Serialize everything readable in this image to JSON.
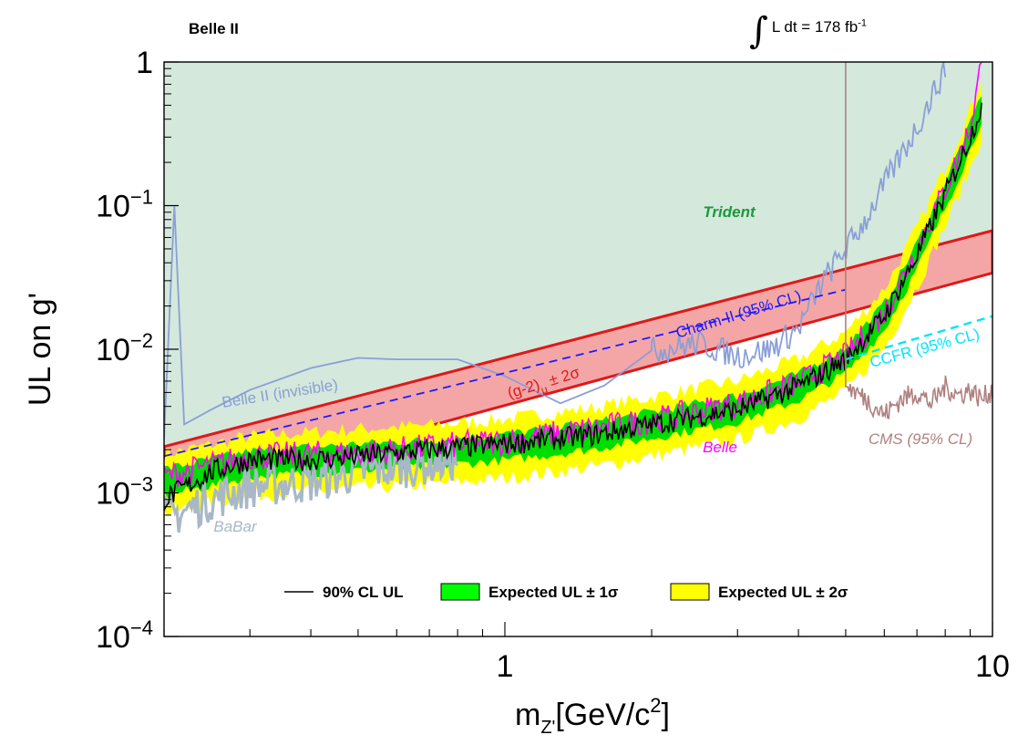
{
  "header": {
    "experiment": "Belle II",
    "lumi_integral_symbol": "∫",
    "lumi_text": "L dt = 178 fb",
    "lumi_exponent": "-1"
  },
  "chart_data": {
    "type": "line",
    "title": "",
    "xlabel_main": "m",
    "xlabel_sub": "Z'",
    "xlabel_rest": "[GeV/c",
    "xlabel_sup": "2",
    "xlabel_close": "]",
    "ylabel": "UL on g'",
    "x_scale": "log",
    "y_scale": "log",
    "xlim": [
      0.2,
      10
    ],
    "ylim": [
      0.0001,
      1
    ],
    "x_ticks": [
      {
        "value": 1,
        "label": "1"
      },
      {
        "value": 10,
        "label": "10"
      }
    ],
    "y_ticks": [
      {
        "value": 1,
        "base": "1",
        "exp": ""
      },
      {
        "value": 0.1,
        "base": "10",
        "exp": "−1"
      },
      {
        "value": 0.01,
        "base": "10",
        "exp": "−2"
      },
      {
        "value": 0.001,
        "base": "10",
        "exp": "−3"
      },
      {
        "value": 0.0001,
        "base": "10",
        "exp": "−4"
      }
    ],
    "colors": {
      "excluded_region": "#d4e8dc",
      "gminus2_fill": "#f4a6a6",
      "gminus2_edge": "#e01818",
      "band_2sigma": "#ffff00",
      "band_1sigma": "#00dd00",
      "observed": "#000000",
      "belle": "#ff00ff",
      "babar": "#a8b8c8",
      "belle2_invisible": "#8a9fd6",
      "charm2": "#1a1aff",
      "ccfr": "#00e5ff",
      "cms": "#b08080",
      "trident_label": "#1a9a3a"
    },
    "gminus2_band": {
      "label_base": "(g-2)",
      "label_sub": "μ",
      "label_rest": "± 2σ",
      "lower": [
        [
          0.2,
          0.00092
        ],
        [
          10,
          0.034
        ]
      ],
      "upper": [
        [
          0.2,
          0.0021
        ],
        [
          10,
          0.067
        ]
      ]
    },
    "expected_band": {
      "x": [
        0.2,
        0.25,
        0.3,
        0.4,
        0.5,
        0.7,
        1.0,
        1.5,
        2.0,
        3.0,
        4.0,
        5.0,
        6.0,
        7.0,
        8.0,
        9.0,
        9.5
      ],
      "median": [
        0.0012,
        0.0014,
        0.0016,
        0.0017,
        0.0018,
        0.0019,
        0.0021,
        0.0025,
        0.003,
        0.0039,
        0.0055,
        0.0085,
        0.017,
        0.045,
        0.12,
        0.3,
        0.5
      ]
    },
    "series": [
      {
        "name": "90% CL UL",
        "x": [
          0.2,
          0.25,
          0.3,
          0.4,
          0.5,
          0.7,
          1.0,
          1.5,
          2.0,
          3.0,
          4.0,
          5.0,
          6.0,
          7.0,
          8.0,
          9.0,
          9.5
        ],
        "values": [
          0.0009,
          0.0014,
          0.0017,
          0.0017,
          0.0018,
          0.002,
          0.0022,
          0.0025,
          0.003,
          0.0038,
          0.0055,
          0.0085,
          0.017,
          0.045,
          0.12,
          0.3,
          0.5
        ]
      },
      {
        "name": "Belle",
        "x": [
          0.2,
          0.3,
          0.5,
          1.0,
          2.0,
          3.0,
          4.0,
          5.0,
          6.0,
          7.0,
          8.0,
          9.0,
          9.5
        ],
        "values": [
          0.0013,
          0.0018,
          0.0019,
          0.0023,
          0.0032,
          0.0042,
          0.0058,
          0.009,
          0.018,
          0.05,
          0.13,
          0.35,
          1.0
        ]
      },
      {
        "name": "BaBar",
        "x": [
          0.2,
          0.25,
          0.3,
          0.4,
          0.5,
          0.7,
          0.8
        ],
        "values": [
          0.00065,
          0.0009,
          0.0011,
          0.0012,
          0.0014,
          0.0016,
          0.0017
        ]
      },
      {
        "name": "Belle II (invisible)",
        "x": [
          0.2,
          0.21,
          0.22,
          0.25,
          0.3,
          0.4,
          0.5,
          0.6,
          0.8,
          1.0,
          1.3,
          1.6,
          2.0,
          2.5,
          3.0,
          3.5,
          4.0,
          4.5,
          5.0,
          5.5,
          6.0,
          7.0,
          8.0
        ],
        "values": [
          0.0024,
          0.1,
          0.003,
          0.0038,
          0.0052,
          0.0074,
          0.0087,
          0.0085,
          0.0085,
          0.0065,
          0.0042,
          0.0056,
          0.0098,
          0.011,
          0.009,
          0.01,
          0.014,
          0.03,
          0.05,
          0.08,
          0.14,
          0.35,
          0.9
        ]
      },
      {
        "name": "Charm-II (95% CL)",
        "x": [
          0.2,
          5.0
        ],
        "values": [
          0.0018,
          0.026
        ]
      },
      {
        "name": "CCFR (95% CL)",
        "x": [
          5.0,
          10.0
        ],
        "values": [
          0.0085,
          0.017
        ]
      },
      {
        "name": "CMS (95% CL)",
        "x": [
          5.0,
          5.05,
          5.5,
          6.0,
          6.5,
          7.0,
          7.5,
          8.0,
          8.5,
          9.0,
          9.5,
          10.0
        ],
        "values": [
          1.0,
          0.0055,
          0.0045,
          0.0035,
          0.0045,
          0.005,
          0.0042,
          0.0055,
          0.0048,
          0.0052,
          0.0045,
          0.0052
        ]
      }
    ],
    "annotations": {
      "trident": "Trident",
      "charm2": "Charm-II (95% CL)",
      "belle2_invisible": "Belle II (invisible)",
      "ccfr": "CCFR (95% CL)",
      "cms": "CMS (95% CL)",
      "belle": "Belle",
      "babar": "BaBar"
    },
    "legend": {
      "placement": "bottom-center",
      "items": [
        {
          "label": "90% CL UL",
          "style": "line",
          "color": "#000000"
        },
        {
          "label": "Expected UL ± 1σ",
          "style": "box",
          "color": "#00ff00"
        },
        {
          "label": "Expected UL ± 2σ",
          "style": "box",
          "color": "#ffff00"
        }
      ]
    }
  }
}
